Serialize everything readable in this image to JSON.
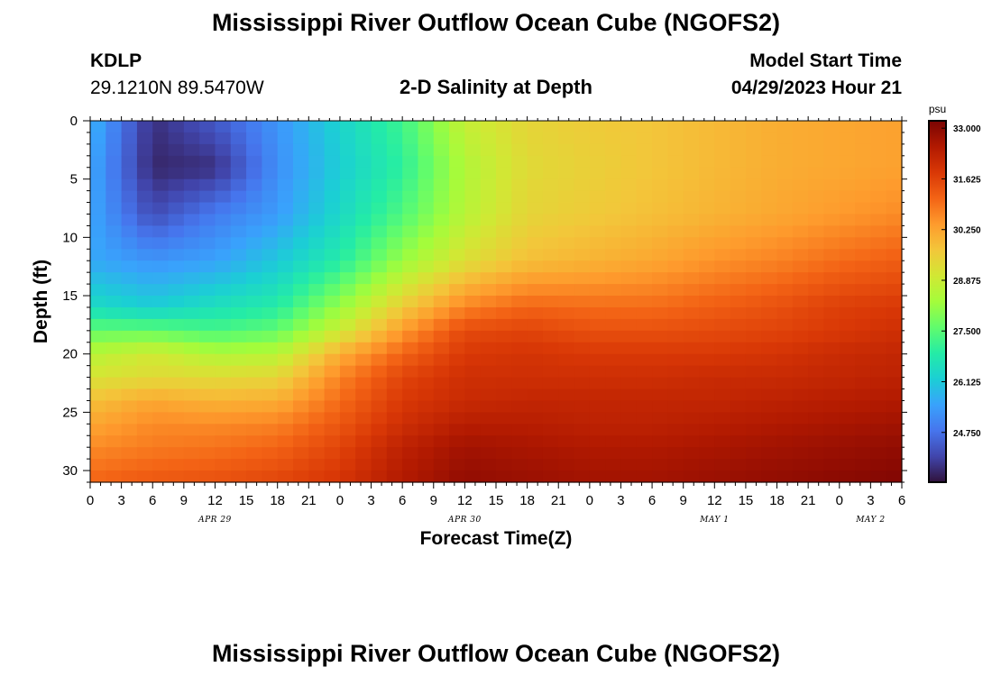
{
  "header": {
    "title": "Mississippi River Outflow Ocean Cube (NGOFS2)",
    "station_id": "KDLP",
    "station_coords": "29.1210N  89.5470W",
    "plot_title": "2-D Salinity at Depth",
    "model_start_label": "Model Start Time",
    "model_start_value": "04/29/2023 Hour 21"
  },
  "footer": {
    "title": "Mississippi River Outflow Ocean Cube (NGOFS2)"
  },
  "chart_data": {
    "type": "heatmap",
    "title": "2-D Salinity at Depth",
    "xlabel": "Forecast Time(Z)",
    "ylabel": "Depth (ft)",
    "x_tick_labels": [
      "0",
      "3",
      "6",
      "9",
      "12",
      "15",
      "18",
      "21",
      "0",
      "3",
      "6",
      "9",
      "12",
      "15",
      "18",
      "21",
      "0",
      "3",
      "6",
      "9",
      "12",
      "15",
      "18",
      "21",
      "0",
      "3",
      "6"
    ],
    "x_date_labels": [
      "APR 29",
      "APR 30",
      "MAY 1",
      "MAY 2"
    ],
    "y_tick_labels": [
      "0",
      "5",
      "10",
      "15",
      "20",
      "25",
      "30"
    ],
    "x_range_hours": [
      0,
      78
    ],
    "ylim": [
      0,
      31
    ],
    "y_inverted": true,
    "colorbar": {
      "unit": "psu",
      "tick_labels": [
        "33.000",
        "31.625",
        "30.250",
        "28.875",
        "27.500",
        "26.125",
        "24.750"
      ],
      "range": [
        23.4,
        33.2
      ],
      "colors": [
        "#30123b",
        "#4145ab",
        "#4675ed",
        "#39a2fc",
        "#1bcfd4",
        "#24eca6",
        "#61fc6c",
        "#a4fc3b",
        "#d1e834",
        "#f3c63a",
        "#fe9b2d",
        "#f36315",
        "#d93806",
        "#b11901",
        "#7a0403"
      ]
    },
    "z_grid": {
      "x_hours": [
        0,
        6,
        12,
        18,
        24,
        30,
        36,
        42,
        48,
        54,
        60,
        66,
        72,
        78
      ],
      "depth_ft": [
        0,
        4,
        8,
        12,
        16,
        18,
        20,
        22,
        24,
        26,
        28,
        31
      ],
      "salinity_psu": [
        [
          25.8,
          23.8,
          24.4,
          25.3,
          26.3,
          27.2,
          28.8,
          29.4,
          29.6,
          29.7,
          29.9,
          30.1,
          30.2,
          30.3
        ],
        [
          25.6,
          23.7,
          23.8,
          25.2,
          26.2,
          27.0,
          28.5,
          29.3,
          29.5,
          29.7,
          29.9,
          30.1,
          30.2,
          30.3
        ],
        [
          25.6,
          24.2,
          24.9,
          25.4,
          26.4,
          27.4,
          28.6,
          29.4,
          29.6,
          29.8,
          30.0,
          30.2,
          30.4,
          30.6
        ],
        [
          25.6,
          25.3,
          25.5,
          26.1,
          26.9,
          28.2,
          29.2,
          29.8,
          30.0,
          30.2,
          30.5,
          30.7,
          31.0,
          31.2
        ],
        [
          26.5,
          26.2,
          26.6,
          26.9,
          28.2,
          29.6,
          30.7,
          31.1,
          31.0,
          31.0,
          31.2,
          31.4,
          31.7,
          31.8
        ],
        [
          27.6,
          27.6,
          27.3,
          27.6,
          28.9,
          30.4,
          31.5,
          31.6,
          31.4,
          31.4,
          31.5,
          31.6,
          31.8,
          32.0
        ],
        [
          28.6,
          29.0,
          28.5,
          28.6,
          30.1,
          31.1,
          31.8,
          31.9,
          31.8,
          31.8,
          31.8,
          31.9,
          32.1,
          32.2
        ],
        [
          29.1,
          29.3,
          29.3,
          29.4,
          30.7,
          31.6,
          32.0,
          32.0,
          32.0,
          32.0,
          32.1,
          32.1,
          32.2,
          32.3
        ],
        [
          29.8,
          30.2,
          30.0,
          30.1,
          31.0,
          31.8,
          32.1,
          32.2,
          32.2,
          32.2,
          32.2,
          32.3,
          32.4,
          32.5
        ],
        [
          30.2,
          30.6,
          30.6,
          30.7,
          31.3,
          32.0,
          32.4,
          32.4,
          32.3,
          32.3,
          32.4,
          32.5,
          32.6,
          32.7
        ],
        [
          30.6,
          30.8,
          30.9,
          31.1,
          31.6,
          32.3,
          32.7,
          32.6,
          32.5,
          32.5,
          32.6,
          32.7,
          32.8,
          32.9
        ],
        [
          31.1,
          31.3,
          31.4,
          31.6,
          31.9,
          32.5,
          32.9,
          32.8,
          32.7,
          32.7,
          32.8,
          32.9,
          33.0,
          33.1
        ]
      ]
    },
    "grid": false,
    "legend": "colorbar-right"
  }
}
